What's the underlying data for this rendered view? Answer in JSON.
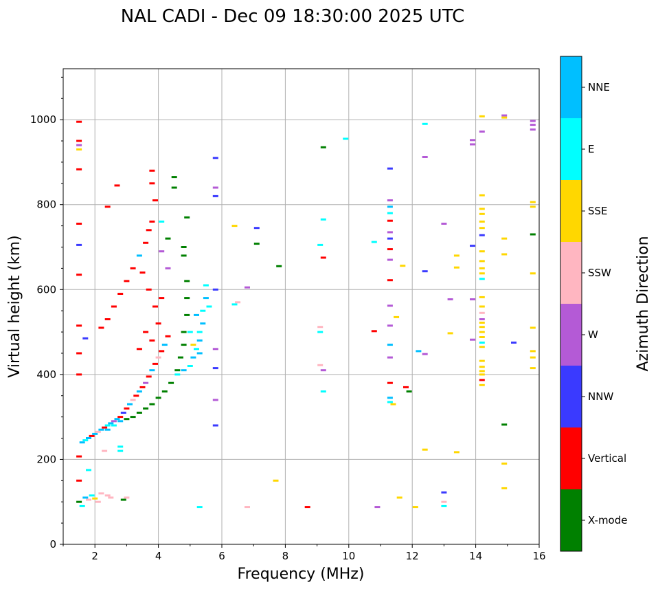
{
  "chart_data": {
    "type": "scatter",
    "title": "NAL CADI - Dec 09 18:30:00 2025 UTC",
    "xlabel": "Frequency (MHz)",
    "ylabel": "Virtual height (km)",
    "xlim": [
      1,
      16
    ],
    "ylim": [
      0,
      1120
    ],
    "xticks": [
      2,
      4,
      6,
      8,
      10,
      12,
      14,
      16
    ],
    "yticks": [
      0,
      200,
      400,
      600,
      800,
      1000
    ],
    "grid": true,
    "colorbar": {
      "label": "Azimuth Direction",
      "categories": [
        {
          "name": "X-mode",
          "color": "#008000"
        },
        {
          "name": "Vertical",
          "color": "#ff0000"
        },
        {
          "name": "NNW",
          "color": "#3a3aff"
        },
        {
          "name": "W",
          "color": "#b45ad6"
        },
        {
          "name": "SSW",
          "color": "#ffb6c1"
        },
        {
          "name": "SSE",
          "color": "#ffd700"
        },
        {
          "name": "E",
          "color": "#00ffff"
        },
        {
          "name": "NNE",
          "color": "#00bfff"
        }
      ]
    },
    "points": [
      {
        "x": 1.5,
        "y": 995,
        "c": "Vertical"
      },
      {
        "x": 1.5,
        "y": 950,
        "c": "Vertical"
      },
      {
        "x": 1.5,
        "y": 940,
        "c": "W"
      },
      {
        "x": 1.5,
        "y": 930,
        "c": "SSE"
      },
      {
        "x": 1.5,
        "y": 883,
        "c": "Vertical"
      },
      {
        "x": 1.5,
        "y": 755,
        "c": "Vertical"
      },
      {
        "x": 1.5,
        "y": 705,
        "c": "NNW"
      },
      {
        "x": 1.5,
        "y": 635,
        "c": "Vertical"
      },
      {
        "x": 1.5,
        "y": 515,
        "c": "Vertical"
      },
      {
        "x": 1.5,
        "y": 450,
        "c": "Vertical"
      },
      {
        "x": 1.5,
        "y": 400,
        "c": "Vertical"
      },
      {
        "x": 1.5,
        "y": 207,
        "c": "Vertical"
      },
      {
        "x": 1.5,
        "y": 150,
        "c": "Vertical"
      },
      {
        "x": 1.5,
        "y": 100,
        "c": "X-mode"
      },
      {
        "x": 1.6,
        "y": 90,
        "c": "E"
      },
      {
        "x": 1.7,
        "y": 110,
        "c": "NNE"
      },
      {
        "x": 1.8,
        "y": 105,
        "c": "SSW"
      },
      {
        "x": 1.9,
        "y": 115,
        "c": "E"
      },
      {
        "x": 2.0,
        "y": 108,
        "c": "SSE"
      },
      {
        "x": 2.1,
        "y": 100,
        "c": "SSW"
      },
      {
        "x": 2.2,
        "y": 120,
        "c": "SSW"
      },
      {
        "x": 2.4,
        "y": 115,
        "c": "SSW"
      },
      {
        "x": 2.5,
        "y": 110,
        "c": "SSW"
      },
      {
        "x": 2.9,
        "y": 105,
        "c": "X-mode"
      },
      {
        "x": 3.0,
        "y": 110,
        "c": "SSW"
      },
      {
        "x": 1.8,
        "y": 175,
        "c": "E"
      },
      {
        "x": 1.7,
        "y": 485,
        "c": "NNW"
      },
      {
        "x": 1.6,
        "y": 240,
        "c": "NNE"
      },
      {
        "x": 1.7,
        "y": 245,
        "c": "E"
      },
      {
        "x": 1.8,
        "y": 250,
        "c": "NNE"
      },
      {
        "x": 1.9,
        "y": 255,
        "c": "Vertical"
      },
      {
        "x": 2.0,
        "y": 260,
        "c": "NNE"
      },
      {
        "x": 2.1,
        "y": 265,
        "c": "SSW"
      },
      {
        "x": 2.2,
        "y": 270,
        "c": "NNE"
      },
      {
        "x": 2.3,
        "y": 275,
        "c": "Vertical"
      },
      {
        "x": 2.4,
        "y": 280,
        "c": "E"
      },
      {
        "x": 2.5,
        "y": 285,
        "c": "NNE"
      },
      {
        "x": 2.6,
        "y": 290,
        "c": "W"
      },
      {
        "x": 2.7,
        "y": 295,
        "c": "NNE"
      },
      {
        "x": 2.8,
        "y": 300,
        "c": "Vertical"
      },
      {
        "x": 2.9,
        "y": 310,
        "c": "NNW"
      },
      {
        "x": 3.0,
        "y": 320,
        "c": "Vertical"
      },
      {
        "x": 3.1,
        "y": 330,
        "c": "NNE"
      },
      {
        "x": 3.2,
        "y": 340,
        "c": "SSW"
      },
      {
        "x": 3.3,
        "y": 350,
        "c": "Vertical"
      },
      {
        "x": 3.4,
        "y": 360,
        "c": "NNE"
      },
      {
        "x": 3.5,
        "y": 370,
        "c": "Vertical"
      },
      {
        "x": 3.6,
        "y": 380,
        "c": "W"
      },
      {
        "x": 3.7,
        "y": 395,
        "c": "Vertical"
      },
      {
        "x": 3.8,
        "y": 410,
        "c": "NNE"
      },
      {
        "x": 3.9,
        "y": 425,
        "c": "Vertical"
      },
      {
        "x": 4.0,
        "y": 440,
        "c": "SSW"
      },
      {
        "x": 4.1,
        "y": 455,
        "c": "Vertical"
      },
      {
        "x": 4.2,
        "y": 470,
        "c": "NNE"
      },
      {
        "x": 4.3,
        "y": 490,
        "c": "Vertical"
      },
      {
        "x": 2.4,
        "y": 270,
        "c": "NNE"
      },
      {
        "x": 2.6,
        "y": 280,
        "c": "E"
      },
      {
        "x": 2.8,
        "y": 290,
        "c": "NNE"
      },
      {
        "x": 3.0,
        "y": 295,
        "c": "X-mode"
      },
      {
        "x": 3.2,
        "y": 300,
        "c": "X-mode"
      },
      {
        "x": 3.4,
        "y": 310,
        "c": "X-mode"
      },
      {
        "x": 3.6,
        "y": 320,
        "c": "X-mode"
      },
      {
        "x": 3.8,
        "y": 330,
        "c": "X-mode"
      },
      {
        "x": 4.0,
        "y": 345,
        "c": "X-mode"
      },
      {
        "x": 4.2,
        "y": 360,
        "c": "X-mode"
      },
      {
        "x": 4.4,
        "y": 380,
        "c": "X-mode"
      },
      {
        "x": 4.6,
        "y": 410,
        "c": "X-mode"
      },
      {
        "x": 4.7,
        "y": 440,
        "c": "X-mode"
      },
      {
        "x": 4.8,
        "y": 470,
        "c": "X-mode"
      },
      {
        "x": 4.8,
        "y": 500,
        "c": "X-mode"
      },
      {
        "x": 4.9,
        "y": 540,
        "c": "X-mode"
      },
      {
        "x": 4.9,
        "y": 580,
        "c": "X-mode"
      },
      {
        "x": 4.9,
        "y": 620,
        "c": "X-mode"
      },
      {
        "x": 4.8,
        "y": 680,
        "c": "X-mode"
      },
      {
        "x": 4.8,
        "y": 700,
        "c": "X-mode"
      },
      {
        "x": 4.9,
        "y": 770,
        "c": "X-mode"
      },
      {
        "x": 4.5,
        "y": 840,
        "c": "X-mode"
      },
      {
        "x": 4.5,
        "y": 865,
        "c": "X-mode"
      },
      {
        "x": 4.6,
        "y": 400,
        "c": "E"
      },
      {
        "x": 4.8,
        "y": 410,
        "c": "NNE"
      },
      {
        "x": 5.0,
        "y": 420,
        "c": "E"
      },
      {
        "x": 5.1,
        "y": 440,
        "c": "NNE"
      },
      {
        "x": 5.2,
        "y": 460,
        "c": "E"
      },
      {
        "x": 5.3,
        "y": 480,
        "c": "NNE"
      },
      {
        "x": 5.3,
        "y": 500,
        "c": "E"
      },
      {
        "x": 5.4,
        "y": 520,
        "c": "NNE"
      },
      {
        "x": 5.4,
        "y": 550,
        "c": "E"
      },
      {
        "x": 5.5,
        "y": 580,
        "c": "NNE"
      },
      {
        "x": 5.5,
        "y": 610,
        "c": "E"
      },
      {
        "x": 5.1,
        "y": 470,
        "c": "SSE"
      },
      {
        "x": 5.2,
        "y": 540,
        "c": "NNE"
      },
      {
        "x": 5.0,
        "y": 500,
        "c": "E"
      },
      {
        "x": 5.3,
        "y": 450,
        "c": "NNE"
      },
      {
        "x": 5.6,
        "y": 560,
        "c": "E"
      },
      {
        "x": 2.2,
        "y": 510,
        "c": "Vertical"
      },
      {
        "x": 2.4,
        "y": 530,
        "c": "Vertical"
      },
      {
        "x": 2.6,
        "y": 560,
        "c": "Vertical"
      },
      {
        "x": 2.8,
        "y": 590,
        "c": "Vertical"
      },
      {
        "x": 3.0,
        "y": 620,
        "c": "Vertical"
      },
      {
        "x": 3.2,
        "y": 650,
        "c": "Vertical"
      },
      {
        "x": 3.4,
        "y": 680,
        "c": "NNE"
      },
      {
        "x": 3.6,
        "y": 710,
        "c": "Vertical"
      },
      {
        "x": 3.7,
        "y": 740,
        "c": "Vertical"
      },
      {
        "x": 3.8,
        "y": 760,
        "c": "Vertical"
      },
      {
        "x": 3.9,
        "y": 810,
        "c": "Vertical"
      },
      {
        "x": 3.8,
        "y": 880,
        "c": "Vertical"
      },
      {
        "x": 2.4,
        "y": 795,
        "c": "Vertical"
      },
      {
        "x": 2.7,
        "y": 845,
        "c": "Vertical"
      },
      {
        "x": 3.8,
        "y": 850,
        "c": "Vertical"
      },
      {
        "x": 3.5,
        "y": 640,
        "c": "Vertical"
      },
      {
        "x": 3.7,
        "y": 600,
        "c": "Vertical"
      },
      {
        "x": 3.9,
        "y": 560,
        "c": "Vertical"
      },
      {
        "x": 4.0,
        "y": 520,
        "c": "Vertical"
      },
      {
        "x": 3.6,
        "y": 500,
        "c": "Vertical"
      },
      {
        "x": 3.8,
        "y": 480,
        "c": "Vertical"
      },
      {
        "x": 3.4,
        "y": 460,
        "c": "Vertical"
      },
      {
        "x": 4.1,
        "y": 580,
        "c": "Vertical"
      },
      {
        "x": 4.3,
        "y": 650,
        "c": "W"
      },
      {
        "x": 4.1,
        "y": 690,
        "c": "W"
      },
      {
        "x": 4.3,
        "y": 720,
        "c": "X-mode"
      },
      {
        "x": 4.1,
        "y": 760,
        "c": "E"
      },
      {
        "x": 2.3,
        "y": 220,
        "c": "SSW"
      },
      {
        "x": 2.8,
        "y": 230,
        "c": "E"
      },
      {
        "x": 2.8,
        "y": 220,
        "c": "E"
      },
      {
        "x": 5.8,
        "y": 910,
        "c": "NNW"
      },
      {
        "x": 5.8,
        "y": 840,
        "c": "W"
      },
      {
        "x": 5.8,
        "y": 820,
        "c": "NNW"
      },
      {
        "x": 5.8,
        "y": 600,
        "c": "NNW"
      },
      {
        "x": 5.8,
        "y": 460,
        "c": "W"
      },
      {
        "x": 5.8,
        "y": 415,
        "c": "NNW"
      },
      {
        "x": 5.8,
        "y": 340,
        "c": "W"
      },
      {
        "x": 5.8,
        "y": 280,
        "c": "NNW"
      },
      {
        "x": 5.3,
        "y": 88,
        "c": "E"
      },
      {
        "x": 6.4,
        "y": 750,
        "c": "SSE"
      },
      {
        "x": 6.4,
        "y": 565,
        "c": "E"
      },
      {
        "x": 6.5,
        "y": 570,
        "c": "SSW"
      },
      {
        "x": 6.8,
        "y": 605,
        "c": "W"
      },
      {
        "x": 6.8,
        "y": 88,
        "c": "SSW"
      },
      {
        "x": 7.1,
        "y": 745,
        "c": "NNW"
      },
      {
        "x": 7.1,
        "y": 708,
        "c": "X-mode"
      },
      {
        "x": 7.7,
        "y": 150,
        "c": "SSE"
      },
      {
        "x": 7.8,
        "y": 655,
        "c": "X-mode"
      },
      {
        "x": 8.7,
        "y": 88,
        "c": "Vertical"
      },
      {
        "x": 9.2,
        "y": 935,
        "c": "X-mode"
      },
      {
        "x": 9.2,
        "y": 765,
        "c": "E"
      },
      {
        "x": 9.1,
        "y": 705,
        "c": "E"
      },
      {
        "x": 9.2,
        "y": 675,
        "c": "Vertical"
      },
      {
        "x": 9.1,
        "y": 512,
        "c": "SSW"
      },
      {
        "x": 9.1,
        "y": 500,
        "c": "E"
      },
      {
        "x": 9.1,
        "y": 422,
        "c": "SSW"
      },
      {
        "x": 9.2,
        "y": 410,
        "c": "W"
      },
      {
        "x": 9.2,
        "y": 360,
        "c": "E"
      },
      {
        "x": 9.9,
        "y": 955,
        "c": "E"
      },
      {
        "x": 10.8,
        "y": 712,
        "c": "E"
      },
      {
        "x": 10.8,
        "y": 502,
        "c": "Vertical"
      },
      {
        "x": 10.9,
        "y": 88,
        "c": "W"
      },
      {
        "x": 11.3,
        "y": 885,
        "c": "NNW"
      },
      {
        "x": 11.3,
        "y": 810,
        "c": "W"
      },
      {
        "x": 11.3,
        "y": 795,
        "c": "NNE"
      },
      {
        "x": 11.3,
        "y": 780,
        "c": "E"
      },
      {
        "x": 11.3,
        "y": 762,
        "c": "Vertical"
      },
      {
        "x": 11.3,
        "y": 735,
        "c": "W"
      },
      {
        "x": 11.3,
        "y": 720,
        "c": "NNW"
      },
      {
        "x": 11.3,
        "y": 695,
        "c": "Vertical"
      },
      {
        "x": 11.3,
        "y": 670,
        "c": "W"
      },
      {
        "x": 11.3,
        "y": 622,
        "c": "Vertical"
      },
      {
        "x": 11.3,
        "y": 562,
        "c": "W"
      },
      {
        "x": 11.3,
        "y": 515,
        "c": "W"
      },
      {
        "x": 11.3,
        "y": 470,
        "c": "NNE"
      },
      {
        "x": 11.3,
        "y": 440,
        "c": "W"
      },
      {
        "x": 11.3,
        "y": 380,
        "c": "Vertical"
      },
      {
        "x": 11.3,
        "y": 345,
        "c": "NNE"
      },
      {
        "x": 11.3,
        "y": 335,
        "c": "E"
      },
      {
        "x": 11.4,
        "y": 330,
        "c": "SSE"
      },
      {
        "x": 11.5,
        "y": 535,
        "c": "SSE"
      },
      {
        "x": 11.6,
        "y": 110,
        "c": "SSE"
      },
      {
        "x": 11.7,
        "y": 656,
        "c": "SSE"
      },
      {
        "x": 11.8,
        "y": 370,
        "c": "Vertical"
      },
      {
        "x": 11.9,
        "y": 360,
        "c": "X-mode"
      },
      {
        "x": 12.2,
        "y": 455,
        "c": "NNE"
      },
      {
        "x": 12.1,
        "y": 88,
        "c": "SSE"
      },
      {
        "x": 12.4,
        "y": 990,
        "c": "E"
      },
      {
        "x": 12.4,
        "y": 912,
        "c": "W"
      },
      {
        "x": 12.4,
        "y": 643,
        "c": "NNW"
      },
      {
        "x": 12.4,
        "y": 448,
        "c": "W"
      },
      {
        "x": 12.4,
        "y": 223,
        "c": "SSE"
      },
      {
        "x": 13.0,
        "y": 755,
        "c": "W"
      },
      {
        "x": 13.0,
        "y": 122,
        "c": "NNW"
      },
      {
        "x": 13.0,
        "y": 100,
        "c": "SSW"
      },
      {
        "x": 13.0,
        "y": 90,
        "c": "E"
      },
      {
        "x": 13.2,
        "y": 577,
        "c": "W"
      },
      {
        "x": 13.2,
        "y": 497,
        "c": "SSE"
      },
      {
        "x": 13.4,
        "y": 680,
        "c": "SSE"
      },
      {
        "x": 13.4,
        "y": 652,
        "c": "SSE"
      },
      {
        "x": 13.4,
        "y": 217,
        "c": "SSE"
      },
      {
        "x": 13.9,
        "y": 952,
        "c": "W"
      },
      {
        "x": 13.9,
        "y": 942,
        "c": "W"
      },
      {
        "x": 13.9,
        "y": 703,
        "c": "NNW"
      },
      {
        "x": 13.9,
        "y": 577,
        "c": "W"
      },
      {
        "x": 13.9,
        "y": 482,
        "c": "W"
      },
      {
        "x": 14.2,
        "y": 1008,
        "c": "SSE"
      },
      {
        "x": 14.2,
        "y": 972,
        "c": "W"
      },
      {
        "x": 14.2,
        "y": 822,
        "c": "SSE"
      },
      {
        "x": 14.2,
        "y": 790,
        "c": "SSE"
      },
      {
        "x": 14.2,
        "y": 778,
        "c": "SSE"
      },
      {
        "x": 14.2,
        "y": 760,
        "c": "SSE"
      },
      {
        "x": 14.2,
        "y": 745,
        "c": "SSE"
      },
      {
        "x": 14.2,
        "y": 728,
        "c": "NNW"
      },
      {
        "x": 14.2,
        "y": 690,
        "c": "SSE"
      },
      {
        "x": 14.2,
        "y": 667,
        "c": "SSE"
      },
      {
        "x": 14.2,
        "y": 650,
        "c": "SSE"
      },
      {
        "x": 14.2,
        "y": 638,
        "c": "SSE"
      },
      {
        "x": 14.2,
        "y": 625,
        "c": "E"
      },
      {
        "x": 14.2,
        "y": 582,
        "c": "SSE"
      },
      {
        "x": 14.2,
        "y": 560,
        "c": "SSE"
      },
      {
        "x": 14.2,
        "y": 545,
        "c": "SSW"
      },
      {
        "x": 14.2,
        "y": 530,
        "c": "W"
      },
      {
        "x": 14.2,
        "y": 522,
        "c": "SSE"
      },
      {
        "x": 14.2,
        "y": 512,
        "c": "SSE"
      },
      {
        "x": 14.2,
        "y": 500,
        "c": "SSE"
      },
      {
        "x": 14.2,
        "y": 488,
        "c": "SSE"
      },
      {
        "x": 14.2,
        "y": 475,
        "c": "E"
      },
      {
        "x": 14.2,
        "y": 465,
        "c": "SSE"
      },
      {
        "x": 14.2,
        "y": 432,
        "c": "SSE"
      },
      {
        "x": 14.2,
        "y": 418,
        "c": "SSE"
      },
      {
        "x": 14.2,
        "y": 408,
        "c": "SSE"
      },
      {
        "x": 14.2,
        "y": 400,
        "c": "SSE"
      },
      {
        "x": 14.2,
        "y": 387,
        "c": "Vertical"
      },
      {
        "x": 14.2,
        "y": 375,
        "c": "SSE"
      },
      {
        "x": 14.9,
        "y": 1010,
        "c": "W"
      },
      {
        "x": 14.9,
        "y": 1005,
        "c": "SSE"
      },
      {
        "x": 14.9,
        "y": 720,
        "c": "SSE"
      },
      {
        "x": 14.9,
        "y": 683,
        "c": "SSE"
      },
      {
        "x": 14.9,
        "y": 282,
        "c": "X-mode"
      },
      {
        "x": 14.9,
        "y": 190,
        "c": "SSE"
      },
      {
        "x": 14.9,
        "y": 132,
        "c": "SSE"
      },
      {
        "x": 15.2,
        "y": 475,
        "c": "NNW"
      },
      {
        "x": 15.8,
        "y": 997,
        "c": "W"
      },
      {
        "x": 15.8,
        "y": 988,
        "c": "W"
      },
      {
        "x": 15.8,
        "y": 977,
        "c": "W"
      },
      {
        "x": 15.8,
        "y": 806,
        "c": "SSE"
      },
      {
        "x": 15.8,
        "y": 795,
        "c": "SSE"
      },
      {
        "x": 15.8,
        "y": 730,
        "c": "X-mode"
      },
      {
        "x": 15.8,
        "y": 638,
        "c": "SSE"
      },
      {
        "x": 15.8,
        "y": 510,
        "c": "SSE"
      },
      {
        "x": 15.8,
        "y": 455,
        "c": "SSE"
      },
      {
        "x": 15.8,
        "y": 440,
        "c": "SSE"
      },
      {
        "x": 15.8,
        "y": 415,
        "c": "SSE"
      }
    ]
  }
}
